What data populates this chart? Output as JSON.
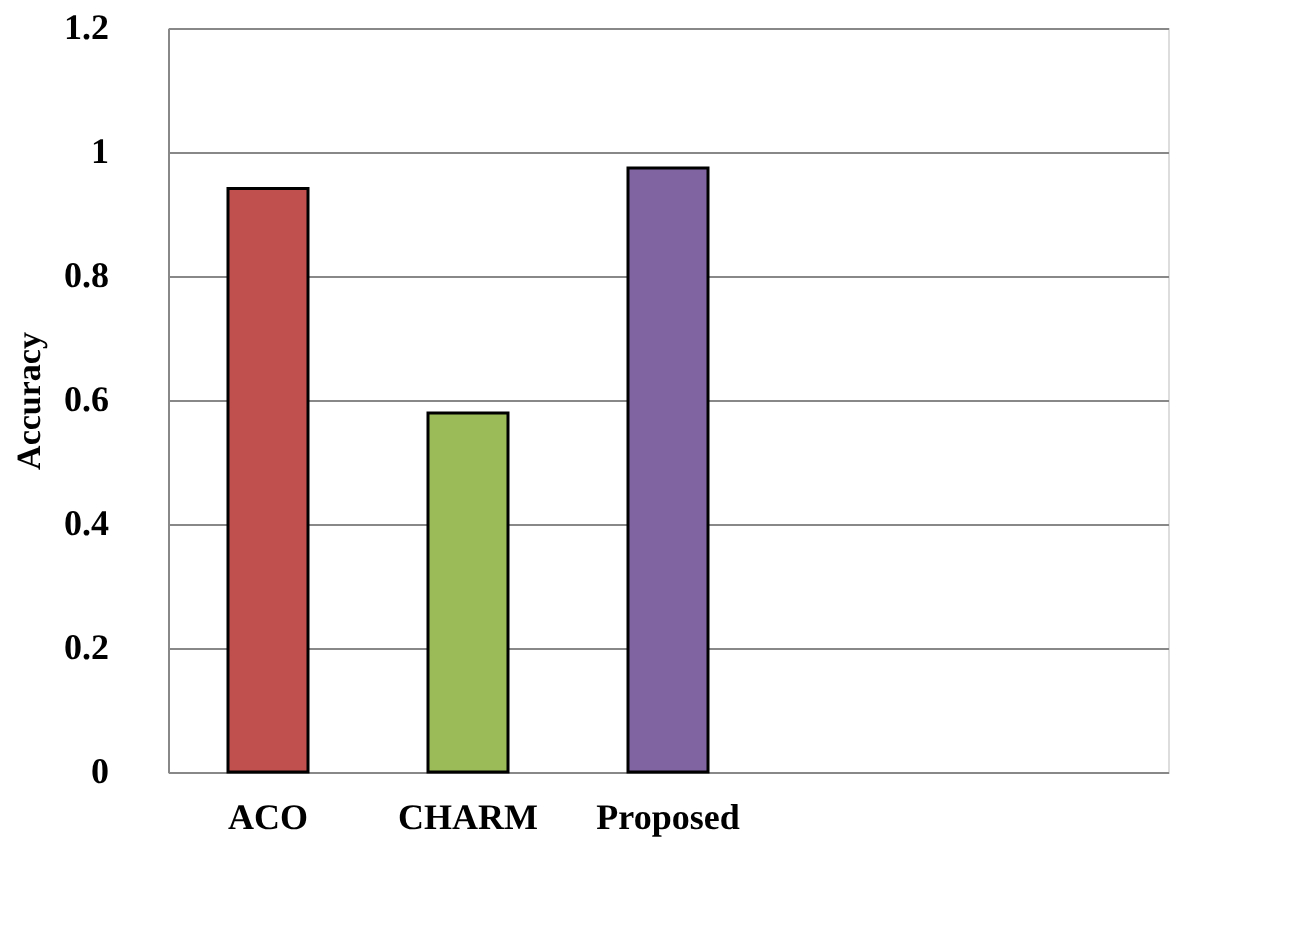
{
  "chart_data": {
    "type": "bar",
    "ylabel": "Accuracy",
    "categories": [
      "ACO",
      "CHARM",
      "Proposed",
      null,
      null
    ],
    "values": [
      0.941,
      0.579,
      0.974,
      null,
      null
    ],
    "colors": [
      "#c0504d",
      "#9bbb59",
      "#8064a2",
      "#000000",
      "#000000"
    ],
    "ylim": [
      0,
      1.2
    ],
    "yticks": [
      0,
      0.2,
      0.4,
      0.6,
      0.8,
      1,
      1.2
    ],
    "grid": "y"
  }
}
